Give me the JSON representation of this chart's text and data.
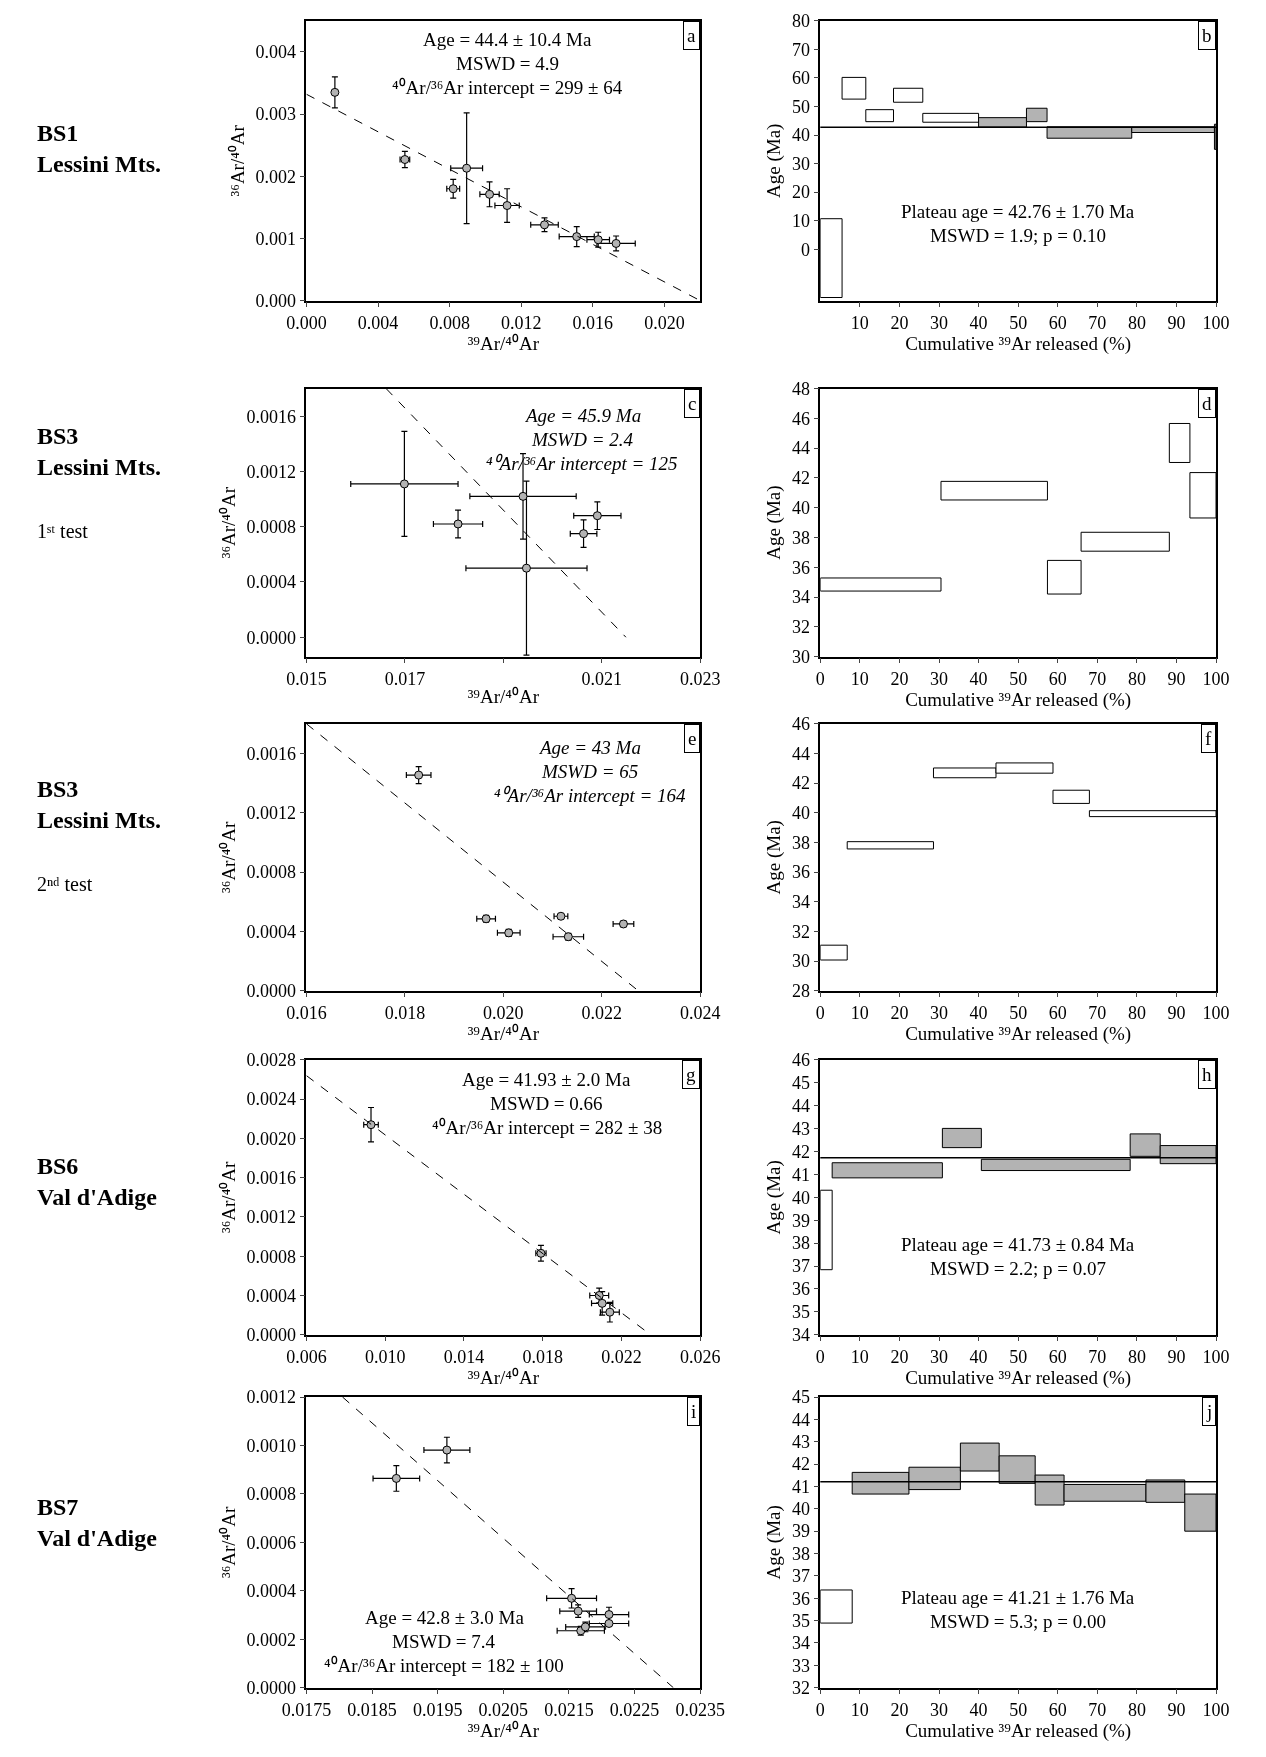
{
  "chart_data": [
    {
      "type": "scatter",
      "title": "BS1\nLessini Mts.",
      "xlabel": "³⁹Ar/⁴⁰Ar",
      "ylabel": "³⁶Ar/⁴⁰Ar",
      "xlim": [
        0,
        0.022
      ],
      "ylim": [
        0,
        0.0045
      ],
      "xticks": [
        {
          "value": 0,
          "label": "0.000"
        },
        0.004,
        0.008,
        0.012,
        0.016,
        {
          "value": 0.02,
          "label": "0.020"
        }
      ],
      "yticks": [
        {
          "value": 0,
          "label": "0.000"
        },
        0.001,
        0.002,
        0.003,
        0.004
      ],
      "annotations": [
        "a",
        "Age = 44.4 ± 10.4 Ma",
        "MSWD = 4.9",
        "⁴⁰Ar/³⁶Ar intercept = 299 ± 64"
      ],
      "series": [
        {
          "type": "scatter",
          "color": "#b3b3b3",
          "x": [
            0.00159,
            0.0055,
            0.0082,
            0.00895,
            0.01023,
            0.01121,
            0.0133,
            0.0151,
            0.0163,
            0.0173
          ],
          "values": [
            0.00335,
            0.00227,
            0.0018,
            0.00213,
            0.00171,
            0.00153,
            0.00122,
            0.00103,
            0.00098,
            0.00092
          ],
          "xerrors": [
            5e-05,
            0.00027,
            0.00036,
            0.00089,
            0.00054,
            0.00068,
            0.00077,
            0.00098,
            0.00063,
            0.00107
          ],
          "errors": [
            0.00025,
            0.00013,
            0.00015,
            0.00089,
            0.0002,
            0.00027,
            0.00011,
            0.00016,
            0.00012,
            0.00012
          ]
        },
        {
          "type": "line",
          "color": "#000000",
          "line_style": "dashed",
          "x": [
            0,
            0.022
          ],
          "values": [
            0.00332,
            0
          ]
        }
      ]
    },
    {
      "type": "histogram",
      "xlabel": "Cumulative ³⁹Ar released (%)",
      "ylabel": "Age (Ma)",
      "xlim": [
        0,
        100
      ],
      "ylim": [
        -18,
        80
      ],
      "xticks": [
        10,
        20,
        30,
        40,
        50,
        60,
        70,
        80,
        90,
        100
      ],
      "yticks": [
        0,
        10,
        20,
        30,
        40,
        50,
        60,
        70,
        80
      ],
      "annotations": [
        "b",
        "Plateau age = 42.76 ± 1.70 Ma",
        "MSWD = 1.9; p = 0.10"
      ],
      "bins": [
        0,
        5.5,
        11.5,
        18.5,
        25.9,
        40,
        52.1,
        57.3,
        78.7,
        99.6,
        100
      ],
      "base": [
        -16.9,
        52.6,
        44.7,
        51.5,
        44.5,
        42.8,
        44.7,
        38.9,
        40.9,
        35.0
      ],
      "values": [
        27.6,
        7.6,
        4.2,
        4.9,
        3.1,
        3.3,
        4.7,
        4.0,
        2.0,
        8.8
      ],
      "colors": [
        "#ffffff",
        "#ffffff",
        "#ffffff",
        "#ffffff",
        "#ffffff",
        "#b3b3b3",
        "#b3b3b3",
        "#b3b3b3",
        "#b3b3b3",
        "#b3b3b3"
      ],
      "ref_lines": [
        {
          "axis": "y",
          "value": 42.76,
          "color": "#000000"
        }
      ]
    },
    {
      "type": "scatter",
      "title": "BS3\nLessini Mts.\n1ˢᵗ test",
      "xlabel": "³⁹Ar/⁴⁰Ar",
      "ylabel": "³⁶Ar/⁴⁰Ar",
      "xlim": [
        0.015,
        0.023
      ],
      "ylim": [
        -0.00014,
        0.0018
      ],
      "xticks": [
        0.015,
        0.017,
        {
          "value": 0.019,
          "label": null
        },
        0.021,
        0.023
      ],
      "yticks": [
        {
          "value": 0,
          "label": "0.0000"
        },
        0.0004,
        0.0008,
        0.0012,
        0.0016
      ],
      "annotations": [
        "c",
        "Age = 45.9 Ma",
        "MSWD = 2.4",
        "⁴⁰Ar/³⁶Ar intercept = 125"
      ],
      "series": [
        {
          "type": "scatter",
          "color": "#b3b3b3",
          "x": [
            0.01808,
            0.02063,
            0.01699,
            0.0194,
            0.02091,
            0.01947
          ],
          "values": [
            0.00082,
            0.00075,
            0.00111,
            0.00102,
            0.00088,
            0.0005
          ],
          "xerrors": [
            0.0005,
            0.00027,
            0.00109,
            0.00108,
            0.00048,
            0.00123
          ],
          "errors": [
            0.0001,
            0.0001,
            0.00038,
            0.00031,
            0.0001,
            0.00063
          ]
        },
        {
          "type": "line",
          "color": "#000000",
          "line_style": "dashed",
          "x": [
            0.01662,
            0.02149
          ],
          "values": [
            0.0018,
            0
          ]
        }
      ]
    },
    {
      "type": "histogram",
      "xlabel": "Cumulative ³⁹Ar released (%)",
      "ylabel": "Age (Ma)",
      "xlim": [
        0,
        100
      ],
      "ylim": [
        30,
        48
      ],
      "xticks": [
        0,
        10,
        20,
        30,
        40,
        50,
        60,
        70,
        80,
        90,
        100
      ],
      "yticks": [
        30,
        32,
        34,
        36,
        38,
        40,
        42,
        44,
        46,
        48
      ],
      "annotations": [
        "d"
      ],
      "bins": [
        0,
        30.5,
        57.4,
        65.9,
        88.2,
        93.4,
        100
      ],
      "base": [
        34.4,
        40.52,
        34.2,
        37.08,
        43.04,
        39.31
      ],
      "values": [
        0.88,
        1.25,
        2.26,
        1.27,
        2.62,
        3.05
      ],
      "colors": [
        "#ffffff",
        "#ffffff",
        "#ffffff",
        "#ffffff",
        "#ffffff",
        "#ffffff"
      ]
    },
    {
      "type": "scatter",
      "title": "BS3\nLessini Mts.\n2ⁿᵈ test",
      "xlabel": "³⁹Ar/⁴⁰Ar",
      "ylabel": "³⁶Ar/⁴⁰Ar",
      "xlim": [
        0.016,
        0.024
      ],
      "ylim": [
        0,
        0.0018
      ],
      "xticks": [
        0.016,
        0.018,
        {
          "value": 0.02,
          "label": "0.020"
        },
        0.022,
        0.024
      ],
      "yticks": [
        {
          "value": 0,
          "label": "0.0000"
        },
        0.0004,
        0.0008,
        0.0012,
        0.0016
      ],
      "annotations": [
        "e",
        "Age = 43 Ma",
        "MSWD = 65",
        "⁴⁰Ar/³⁶Ar intercept = 164"
      ],
      "series": [
        {
          "type": "scatter",
          "color": "#b3b3b3",
          "x": [
            0.01828,
            0.01965,
            0.02011,
            0.02117,
            0.02132,
            0.02244
          ],
          "values": [
            0.001454,
            0.000485,
            0.00039,
            0.000502,
            0.000364,
            0.00045
          ],
          "xerrors": [
            0.00025,
            0.00019,
            0.00023,
            0.00014,
            0.00031,
            0.00021
          ],
          "errors": [
            5.7e-05,
            2.3e-05,
            2.3e-05,
            1.7e-05,
            2.3e-05,
            2e-05
          ]
        },
        {
          "type": "line",
          "color": "#000000",
          "line_style": "dashed",
          "x": [
            0.016,
            0.02274
          ],
          "values": [
            0.0018,
            0
          ]
        }
      ]
    },
    {
      "type": "histogram",
      "xlabel": "Cumulative ³⁹Ar released (%)",
      "ylabel": "Age (Ma)",
      "xlim": [
        0,
        100
      ],
      "ylim": [
        28,
        46
      ],
      "xticks": [
        0,
        10,
        20,
        30,
        40,
        50,
        60,
        70,
        80,
        90,
        100
      ],
      "yticks": [
        28,
        30,
        32,
        34,
        36,
        38,
        40,
        42,
        44,
        46
      ],
      "annotations": [
        "f"
      ],
      "bins": [
        0,
        6.8,
        28.6,
        44.4,
        58.8,
        68.0,
        100
      ],
      "base": [
        30.07,
        37.56,
        42.36,
        42.67,
        40.63,
        39.74
      ],
      "values": [
        1.0,
        0.49,
        0.66,
        0.69,
        0.89,
        0.4
      ],
      "colors": [
        "#ffffff",
        "#ffffff",
        "#ffffff",
        "#ffffff",
        "#ffffff",
        "#ffffff"
      ]
    },
    {
      "type": "scatter",
      "title": "BS6\nVal d'Adige",
      "xlabel": "³⁹Ar/⁴⁰Ar",
      "ylabel": "³⁶Ar/⁴⁰Ar",
      "xlim": [
        0.006,
        0.026
      ],
      "ylim": [
        0,
        0.0028
      ],
      "xticks": [
        0.006,
        {
          "value": 0.01,
          "label": "0.010"
        },
        0.014,
        0.018,
        0.022,
        0.026
      ],
      "yticks": [
        {
          "value": 0,
          "label": "0.0000"
        },
        0.0004,
        0.0008,
        0.0012,
        0.0016,
        {
          "value": 0.002,
          "label": "0.0020"
        },
        0.0024,
        0.0028
      ],
      "annotations": [
        "g",
        "Age = 41.93 ± 2.0 Ma",
        "MSWD = 0.66",
        "⁴⁰Ar/³⁶Ar intercept = 282 ± 38"
      ],
      "series": [
        {
          "type": "scatter",
          "color": "#b3b3b3",
          "x": [
            0.00928,
            0.01791,
            0.02141,
            0.02102,
            0.02087
          ],
          "values": [
            0.00214,
            0.00083,
            0.00023,
            0.00032,
            0.0004
          ],
          "xerrors": [
            0.00037,
            0.00026,
            0.00048,
            0.00054,
            0.00048
          ],
          "errors": [
            0.000175,
            8e-05,
            0.0001,
            0.00012,
            7.5e-05
          ]
        },
        {
          "type": "line",
          "color": "#000000",
          "line_style": "dashed",
          "x": [
            0.006,
            0.02348
          ],
          "values": [
            0.00264,
            0
          ]
        }
      ]
    },
    {
      "type": "histogram",
      "xlabel": "Cumulative ³⁹Ar released (%)",
      "ylabel": "Age (Ma)",
      "xlim": [
        0,
        100
      ],
      "ylim": [
        34,
        46
      ],
      "xticks": [
        0,
        10,
        20,
        30,
        40,
        50,
        60,
        70,
        80,
        90,
        100
      ],
      "yticks": [
        34,
        35,
        36,
        37,
        38,
        39,
        40,
        41,
        42,
        43,
        44,
        45,
        46
      ],
      "annotations": [
        "h",
        "Plateau age = 41.73 ± 0.84 Ma",
        "MSWD = 2.2; p = 0.07"
      ],
      "bins": [
        0,
        3.0,
        30.85,
        40.7,
        78.3,
        85.9,
        100
      ],
      "base": [
        36.84,
        40.85,
        42.17,
        41.17,
        41.79,
        41.47
      ],
      "values": [
        3.47,
        0.66,
        0.84,
        0.49,
        0.98,
        0.79
      ],
      "colors": [
        "#ffffff",
        "#b3b3b3",
        "#b3b3b3",
        "#b3b3b3",
        "#b3b3b3",
        "#b3b3b3"
      ],
      "ref_lines": [
        {
          "axis": "y",
          "value": 41.73,
          "color": "#000000"
        }
      ]
    },
    {
      "type": "scatter",
      "title": "BS7\nVal d'Adige",
      "xlabel": "³⁹Ar/⁴⁰Ar",
      "ylabel": "³⁶Ar/⁴⁰Ar",
      "xlim": [
        0.0175,
        0.0235
      ],
      "ylim": [
        0,
        0.0012
      ],
      "xticks": [
        0.0175,
        0.0185,
        0.0195,
        {
          "value": 0.0205,
          "label": "0.0205"
        },
        0.0215,
        0.0225,
        0.0235
      ],
      "yticks": [
        {
          "value": 0,
          "label": "0.0000"
        },
        0.0002,
        0.0004,
        0.0006,
        0.0008,
        {
          "value": 0.001,
          "label": "0.0010"
        },
        0.0012
      ],
      "annotations": [
        "i",
        "Age = 42.8 ± 3.0 Ma",
        "MSWD = 7.4",
        "⁴⁰Ar/³⁶Ar intercept = 182 ± 100"
      ],
      "series": [
        {
          "type": "scatter",
          "color": "#b3b3b3",
          "x": [
            0.01887,
            0.01964,
            0.02168,
            0.02175,
            0.02211,
            0.02211,
            0.02164,
            0.02154
          ],
          "values": [
            0.000864,
            0.000981,
            0.000235,
            0.000251,
            0.000265,
            0.000302,
            0.000316,
            0.000369
          ],
          "xerrors": [
            0.000355,
            0.00035,
            0.00036,
            0.0003,
            0.0003,
            0.0003,
            0.00028,
            0.00038
          ],
          "errors": [
            5.3e-05,
            5.3e-05,
            1.8e-05,
            2e-05,
            null,
            3e-05,
            2.6e-05,
            4e-05
          ]
        },
        {
          "type": "line",
          "color": "#000000",
          "line_style": "dashed",
          "x": [
            0.01805,
            0.02309
          ],
          "values": [
            0.0012,
            0
          ]
        }
      ]
    },
    {
      "type": "histogram",
      "xlabel": "Cumulative ³⁹Ar released (%)",
      "ylabel": "Age (Ma)",
      "xlim": [
        0,
        100
      ],
      "ylim": [
        32,
        45
      ],
      "xticks": [
        0,
        10,
        20,
        30,
        40,
        50,
        60,
        70,
        80,
        90,
        100
      ],
      "yticks": [
        32,
        33,
        34,
        35,
        36,
        37,
        38,
        39,
        40,
        41,
        42,
        43,
        44,
        45
      ],
      "annotations": [
        "j",
        "Plateau age = 41.21 ± 1.76 Ma",
        "MSWD = 5.3; p = 0.00"
      ],
      "bins": [
        0,
        8.06,
        22.4,
        35.4,
        45.2,
        54.3,
        61.6,
        82.3,
        92.1,
        100
      ],
      "base": [
        34.89,
        40.66,
        40.86,
        41.69,
        41.14,
        40.17,
        40.34,
        40.29,
        39.0
      ],
      "values": [
        1.48,
        0.97,
        1.0,
        1.25,
        1.23,
        1.34,
        0.75,
        1.0,
        1.66
      ],
      "colors": [
        "#ffffff",
        "#b3b3b3",
        "#b3b3b3",
        "#b3b3b3",
        "#b3b3b3",
        "#b3b3b3",
        "#b3b3b3",
        "#b3b3b3",
        "#b3b3b3"
      ],
      "ref_lines": [
        {
          "axis": "y",
          "value": 41.21,
          "color": "#000000"
        }
      ]
    }
  ]
}
